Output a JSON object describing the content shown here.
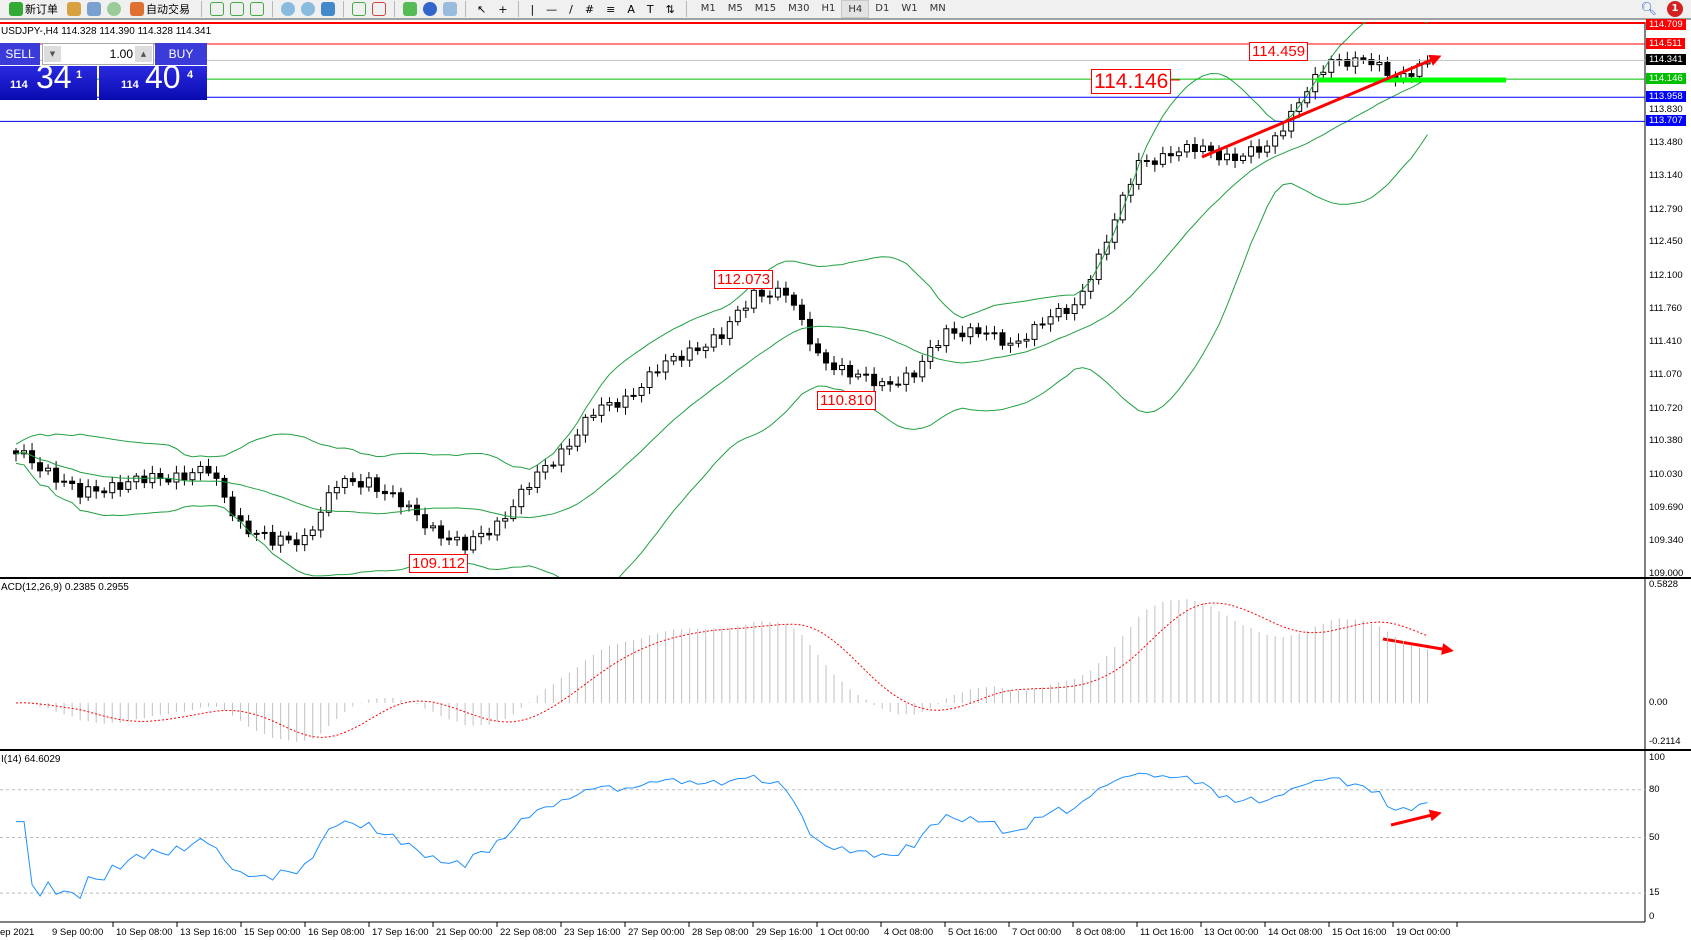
{
  "toolbar": {
    "new_order_label": "新订单",
    "auto_trading_label": "自动交易",
    "timeframes": [
      "M1",
      "M5",
      "M15",
      "M30",
      "H1",
      "H4",
      "D1",
      "W1",
      "MN"
    ],
    "active_timeframe": "H4",
    "notification_count": "1"
  },
  "chart": {
    "header": "USDJPY-,H4  114.328 114.390 114.328 114.341",
    "macd_header": "ACD(12,26,9) 0.2385 0.2955",
    "rsi_header": "I(14) 64.6029"
  },
  "trade_panel": {
    "sell_label": "SELL",
    "buy_label": "BUY",
    "lot_value": "1.00",
    "sell_prefix": "114",
    "sell_main": "34",
    "sell_sup": "1",
    "buy_prefix": "114",
    "buy_main": "40",
    "buy_sup": "4"
  },
  "annotations": [
    "114.459",
    "114.146",
    "112.073",
    "110.810",
    "109.112"
  ],
  "price_axis": {
    "ticks": [
      "113.830",
      "113.480",
      "113.140",
      "112.790",
      "112.450",
      "112.100",
      "111.760",
      "111.410",
      "111.070",
      "110.720",
      "110.380",
      "110.030",
      "109.690",
      "109.340",
      "109.000"
    ],
    "levels": [
      {
        "value": "114.709",
        "color": "#ff0000"
      },
      {
        "value": "114.511",
        "color": "#ff0000"
      },
      {
        "value": "114.341",
        "color": "#000000"
      },
      {
        "value": "114.146",
        "color": "#00c000"
      },
      {
        "value": "113.958",
        "color": "#0000ff"
      },
      {
        "value": "113.707",
        "color": "#0000ff"
      }
    ]
  },
  "macd_axis": [
    "0.5828",
    "0.00",
    "-0.2114"
  ],
  "rsi_axis": [
    "100",
    "80",
    "50",
    "15",
    "0"
  ],
  "time_axis": [
    "ep 2021",
    "9 Sep 00:00",
    "10 Sep 08:00",
    "13 Sep 16:00",
    "15 Sep 00:00",
    "16 Sep 08:00",
    "17 Sep 16:00",
    "21 Sep 00:00",
    "22 Sep 08:00",
    "23 Sep 16:00",
    "27 Sep 00:00",
    "28 Sep 08:00",
    "29 Sep 16:00",
    "1 Oct 00:00",
    "4 Oct 08:00",
    "5 Oct 16:00",
    "7 Oct 00:00",
    "8 Oct 08:00",
    "11 Oct 16:00",
    "13 Oct 00:00",
    "14 Oct 08:00",
    "15 Oct 16:00",
    "19 Oct 00:00"
  ],
  "chart_data": {
    "type": "candlestick",
    "symbol": "USDJPY-",
    "timeframe": "H4",
    "ylim": [
      109.0,
      114.709
    ],
    "approx_closes_every_16h": [
      110.25,
      110.1,
      109.8,
      109.95,
      109.95,
      110.05,
      110.05,
      109.55,
      109.3,
      109.4,
      109.9,
      110.0,
      109.7,
      109.5,
      109.25,
      109.55,
      109.9,
      110.3,
      110.65,
      110.85,
      111.1,
      111.35,
      111.45,
      111.95,
      111.9,
      111.3,
      111.05,
      111.0,
      111.05,
      111.55,
      111.5,
      111.4,
      111.6,
      111.8,
      112.45,
      113.3,
      113.35,
      113.45,
      113.3,
      113.45,
      113.9,
      114.35,
      114.35,
      114.15,
      114.34
    ],
    "indicators": [
      "Bollinger Bands",
      "MACD(12,26,9)",
      "RSI(14)"
    ],
    "rsi_levels": [
      80,
      50,
      15
    ]
  },
  "colors": {
    "candle": "#000000",
    "bands": "#20a040",
    "macd_hist": "#c0c0c0",
    "macd_signal": "#ff0000",
    "rsi": "#1e90ff",
    "annotation": "#ff0000",
    "support": "#00ff00"
  }
}
